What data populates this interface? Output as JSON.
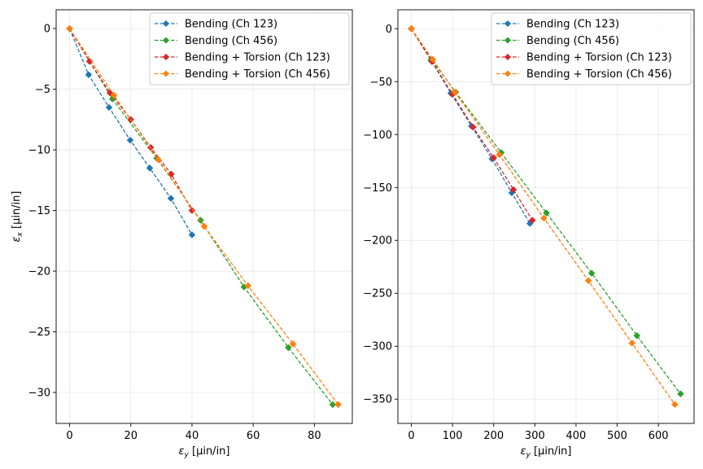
{
  "chart_data": [
    {
      "type": "line",
      "xlabel_symbol": "ε",
      "xlabel_sub": "y",
      "xlabel_unit": " [μin/in]",
      "ylabel_symbol": "ε",
      "ylabel_sub": "x",
      "ylabel_unit": " [μin/in]",
      "xlim": [
        -4.4,
        92.4
      ],
      "ylim": [
        -32.55,
        1.55
      ],
      "xticks": [
        0,
        20,
        40,
        60,
        80
      ],
      "yticks": [
        0,
        -5,
        -10,
        -15,
        -20,
        -25,
        -30
      ],
      "xtick_labels": [
        "0",
        "20",
        "40",
        "60",
        "80"
      ],
      "ytick_labels": [
        "0",
        "−5",
        "−10",
        "−15",
        "−20",
        "−25",
        "−30"
      ],
      "grid": true,
      "legend_position": "top-right",
      "series": [
        {
          "name": "Bending (Ch 123)",
          "color": "#1f77b4",
          "x": [
            0,
            6.2,
            12.9,
            19.8,
            26.2,
            33.1,
            40.0
          ],
          "y": [
            0,
            -3.8,
            -6.5,
            -9.2,
            -11.5,
            -14.0,
            -17.0
          ]
        },
        {
          "name": "Bending (Ch 456)",
          "color": "#2ca02c",
          "x": [
            0,
            14.0,
            28.5,
            42.8,
            57.0,
            71.5,
            86.0
          ],
          "y": [
            0,
            -5.8,
            -10.7,
            -15.8,
            -21.3,
            -26.3,
            -31.0
          ]
        },
        {
          "name": "Bending + Torsion (Ch 123)",
          "color": "#d62728",
          "x": [
            0,
            6.5,
            13.2,
            20.0,
            26.5,
            33.2,
            40.0
          ],
          "y": [
            0,
            -2.7,
            -5.3,
            -7.5,
            -9.8,
            -12.0,
            -15.0
          ]
        },
        {
          "name": "Bending + Torsion (Ch 456)",
          "color": "#ff7f0e",
          "x": [
            0,
            14.5,
            29.0,
            44.0,
            58.3,
            73.0,
            87.8
          ],
          "y": [
            0,
            -5.5,
            -10.8,
            -16.3,
            -21.2,
            -26.0,
            -31.0
          ]
        }
      ]
    },
    {
      "type": "line",
      "xlabel_symbol": "ε",
      "xlabel_sub": "y",
      "xlabel_unit": " [μin/in]",
      "xlim": [
        -32.7,
        686.7
      ],
      "ylim": [
        -372.9,
        17.9
      ],
      "xticks": [
        0,
        100,
        200,
        300,
        400,
        500,
        600
      ],
      "yticks": [
        0,
        -50,
        -100,
        -150,
        -200,
        -250,
        -300,
        -350
      ],
      "xtick_labels": [
        "0",
        "100",
        "200",
        "300",
        "400",
        "500",
        "600"
      ],
      "ytick_labels": [
        "0",
        "−50",
        "−100",
        "−150",
        "−200",
        "−250",
        "−300",
        "−350"
      ],
      "grid": true,
      "legend_position": "top-right",
      "series": [
        {
          "name": "Bending (Ch 123)",
          "color": "#1f77b4",
          "x": [
            0,
            48,
            96,
            146,
            196,
            244,
            288
          ],
          "y": [
            0,
            -30,
            -61,
            -92,
            -123,
            -155,
            -184
          ]
        },
        {
          "name": "Bending (Ch 456)",
          "color": "#2ca02c",
          "x": [
            0,
            48,
            108,
            218,
            328,
            438,
            548,
            654
          ],
          "y": [
            0,
            -29,
            -60,
            -117,
            -174,
            -231,
            -290,
            -345
          ]
        },
        {
          "name": "Bending + Torsion (Ch 123)",
          "color": "#d62728",
          "x": [
            0,
            50,
            100,
            150,
            200,
            248,
            294
          ],
          "y": [
            0,
            -31,
            -62,
            -93,
            -122,
            -152,
            -181
          ]
        },
        {
          "name": "Bending + Torsion (Ch 456)",
          "color": "#ff7f0e",
          "x": [
            0,
            52,
            106,
            214,
            322,
            430,
            536,
            640
          ],
          "y": [
            0,
            -29,
            -60,
            -119,
            -179,
            -238,
            -297,
            -355
          ]
        }
      ]
    }
  ]
}
